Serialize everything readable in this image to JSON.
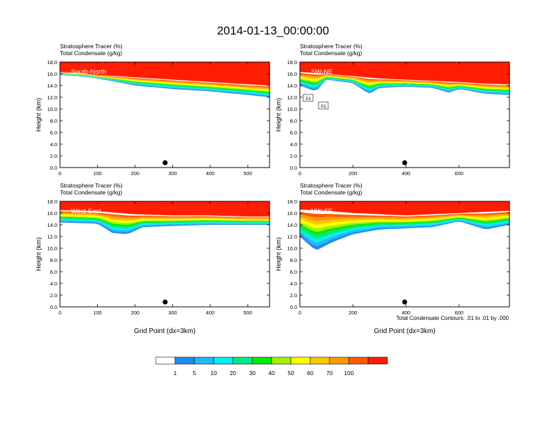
{
  "title": "2014-01-13_00:00:00",
  "footnote": "Total Condensate Contours: .01 to .01 by .000",
  "colorbar": {
    "colors": [
      "#ffffff",
      "#1e8cf0",
      "#1fbaf5",
      "#00f0f0",
      "#00e88c",
      "#00ee00",
      "#a8f000",
      "#ffff00",
      "#ffc800",
      "#ff9a00",
      "#ff5a00",
      "#ff1e00"
    ],
    "labels": [
      "1",
      "5",
      "10",
      "20",
      "30",
      "40",
      "50",
      "60",
      "70",
      "100"
    ]
  },
  "chart_data": [
    {
      "type": "heatmap",
      "title": "South-North",
      "subtitle_lines": [
        "Stratosphere Tracer   (%)",
        "Total Condensate   (g/kg)"
      ],
      "xlabel": "",
      "ylabel": "Height (km)",
      "xlim": [
        0,
        558
      ],
      "ylim": [
        0,
        18
      ],
      "xticks": [
        "0",
        "100",
        "200",
        "300",
        "400",
        "500"
      ],
      "yticks": [
        "0.0",
        "2.0",
        "4.0",
        "6.0",
        "8.0",
        "10.0",
        "12.0",
        "14.0",
        "16.0",
        "18.0"
      ],
      "marker_x": 280,
      "tracer_top": [
        [
          0,
          16.3
        ],
        [
          50,
          16.2
        ],
        [
          100,
          15.8
        ],
        [
          200,
          15.4
        ],
        [
          300,
          15.0
        ],
        [
          400,
          14.6
        ],
        [
          500,
          14.2
        ],
        [
          558,
          14.0
        ]
      ],
      "tracer_bottom": [
        [
          0,
          15.8
        ],
        [
          50,
          15.6
        ],
        [
          100,
          15.2
        ],
        [
          150,
          14.6
        ],
        [
          200,
          14.0
        ],
        [
          300,
          13.4
        ],
        [
          400,
          13.0
        ],
        [
          500,
          12.4
        ],
        [
          558,
          12.0
        ]
      ]
    },
    {
      "type": "heatmap",
      "title": "SW-NE",
      "subtitle_lines": [
        "Stratosphere Tracer   (%)",
        "Total Condensate   (g/kg)"
      ],
      "xlabel": "",
      "ylabel": "Height (km)",
      "xlim": [
        0,
        790
      ],
      "ylim": [
        0,
        18
      ],
      "xticks": [
        "0",
        "200",
        "400",
        "600"
      ],
      "yticks": [
        "0.0",
        "2.0",
        "4.0",
        "6.0",
        "8.0",
        "10.0",
        "12.0",
        "14.0",
        "16.0",
        "18.0"
      ],
      "marker_x": 395,
      "contour_labels": [
        ".01",
        ".01"
      ],
      "tracer_top": [
        [
          0,
          16.3
        ],
        [
          100,
          16.0
        ],
        [
          200,
          15.6
        ],
        [
          300,
          15.2
        ],
        [
          400,
          15.0
        ],
        [
          500,
          14.8
        ],
        [
          600,
          14.6
        ],
        [
          700,
          14.3
        ],
        [
          790,
          14.2
        ]
      ],
      "tracer_bottom": [
        [
          0,
          14.0
        ],
        [
          60,
          13.0
        ],
        [
          100,
          15.0
        ],
        [
          200,
          14.4
        ],
        [
          260,
          12.6
        ],
        [
          300,
          13.6
        ],
        [
          400,
          13.8
        ],
        [
          500,
          13.6
        ],
        [
          560,
          12.8
        ],
        [
          600,
          13.4
        ],
        [
          700,
          12.6
        ],
        [
          790,
          12.4
        ]
      ]
    },
    {
      "type": "heatmap",
      "title": "West-East",
      "subtitle_lines": [
        "Stratosphere Tracer   (%)",
        "Total Condensate   (g/kg)"
      ],
      "xlabel": "Grid Point (dx=3km)",
      "ylabel": "Height (km)",
      "xlim": [
        0,
        558
      ],
      "ylim": [
        0,
        18
      ],
      "xticks": [
        "0",
        "100",
        "200",
        "300",
        "400",
        "500"
      ],
      "yticks": [
        "0.0",
        "2.0",
        "4.0",
        "6.0",
        "8.0",
        "10.0",
        "12.0",
        "14.0",
        "16.0",
        "18.0"
      ],
      "marker_x": 280,
      "tracer_top": [
        [
          0,
          16.5
        ],
        [
          100,
          16.3
        ],
        [
          200,
          15.8
        ],
        [
          300,
          15.6
        ],
        [
          400,
          15.6
        ],
        [
          500,
          15.4
        ],
        [
          558,
          15.4
        ]
      ],
      "tracer_bottom": [
        [
          0,
          14.4
        ],
        [
          100,
          14.2
        ],
        [
          140,
          12.6
        ],
        [
          180,
          12.4
        ],
        [
          220,
          13.6
        ],
        [
          300,
          13.8
        ],
        [
          400,
          14.0
        ],
        [
          500,
          14.0
        ],
        [
          558,
          14.0
        ]
      ]
    },
    {
      "type": "heatmap",
      "title": "NW-SE",
      "subtitle_lines": [
        "Stratosphere Tracer   (%)",
        "Total Condensate   (g/kg)"
      ],
      "xlabel": "Grid Point (dx=3km)",
      "ylabel": "Height (km)",
      "xlim": [
        0,
        790
      ],
      "ylim": [
        0,
        18
      ],
      "xticks": [
        "0",
        "200",
        "400",
        "600"
      ],
      "yticks": [
        "0.0",
        "2.0",
        "4.0",
        "6.0",
        "8.0",
        "10.0",
        "12.0",
        "14.0",
        "16.0",
        "18.0"
      ],
      "marker_x": 395,
      "tracer_top": [
        [
          0,
          16.6
        ],
        [
          100,
          16.4
        ],
        [
          200,
          16.0
        ],
        [
          300,
          15.8
        ],
        [
          400,
          15.6
        ],
        [
          500,
          15.8
        ],
        [
          600,
          16.0
        ],
        [
          700,
          16.2
        ],
        [
          790,
          16.4
        ]
      ],
      "tracer_bottom": [
        [
          0,
          12.0
        ],
        [
          60,
          9.6
        ],
        [
          120,
          11.0
        ],
        [
          200,
          12.4
        ],
        [
          300,
          13.2
        ],
        [
          400,
          13.4
        ],
        [
          500,
          13.6
        ],
        [
          600,
          14.6
        ],
        [
          700,
          13.2
        ],
        [
          790,
          14.0
        ]
      ]
    }
  ]
}
